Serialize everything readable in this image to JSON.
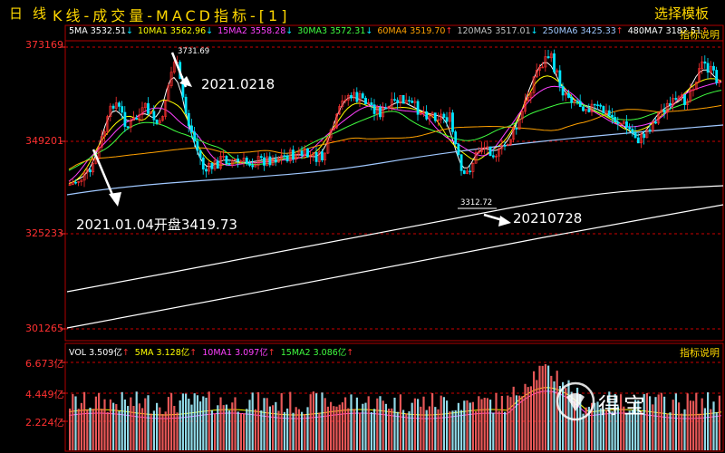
{
  "header": {
    "day_label": "日",
    "line_label": "线",
    "title": "K线-成交量-MACD指标-[1]",
    "template_button": "选择模板"
  },
  "price_panel": {
    "indicator_button": "指标说明",
    "ma_legend": [
      {
        "label": "5MA 3532.51",
        "arrow": "↓",
        "color": "#ffffff"
      },
      {
        "label": "10MA1 3562.96",
        "arrow": "↓",
        "color": "#ffff00"
      },
      {
        "label": "15MA2 3558.28",
        "arrow": "↓",
        "color": "#ff40ff"
      },
      {
        "label": "30MA3 3572.31",
        "arrow": "↓",
        "color": "#40ff40"
      },
      {
        "label": "60MA4 3519.70",
        "arrow": "↑",
        "color": "#ffa000"
      },
      {
        "label": "120MA5 3517.01",
        "arrow": "↓",
        "color": "#c0c0c0"
      },
      {
        "label": "250MA6 3425.33",
        "arrow": "↑",
        "color": "#a0c8ff"
      },
      {
        "label": "480MA7 3182.51",
        "arrow": "↑",
        "color": "#ffffff"
      }
    ],
    "y_ticks": [
      "373169",
      "349201",
      "325233",
      "301265"
    ],
    "annotations": {
      "high_value": "3731.69",
      "high_date": "2021.0218",
      "start_note": "2021.01.04开盘3419.73",
      "low_value": "3312.72",
      "low_date": "20210728"
    }
  },
  "volume_panel": {
    "indicator_button": "指标说明",
    "legend": [
      {
        "label": "VOL 3.509亿",
        "arrow": "↑",
        "color": "#ffffff"
      },
      {
        "label": "5MA 3.128亿",
        "arrow": "↑",
        "color": "#ffff00"
      },
      {
        "label": "10MA1 3.097亿",
        "arrow": "↑",
        "color": "#ff40ff"
      },
      {
        "label": "15MA2 3.086亿",
        "arrow": "↑",
        "color": "#40ff40"
      }
    ],
    "y_ticks": [
      "6.673亿",
      "4.449亿",
      "2.224亿"
    ]
  },
  "watermark": {
    "text": "得宝"
  },
  "colors": {
    "up": "#ff3030",
    "down": "#00e5ff",
    "grid": "#b00000",
    "accent": "#ffd700"
  }
}
